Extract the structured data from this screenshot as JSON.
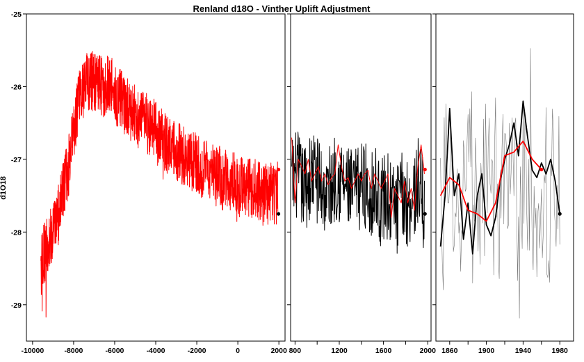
{
  "chart_data": {
    "type": "line",
    "title": "Renland d18O - Vinther Uplift Adjustment",
    "ylabel": "d1O18",
    "ylim": [
      -29.5,
      -25
    ],
    "y_ticks": [
      -29,
      -28,
      -27,
      -26,
      -25
    ],
    "y_tick_labels": [
      "-29",
      "-28",
      "-27",
      "-26",
      "-25"
    ],
    "grid": false,
    "legend": "none",
    "colors": {
      "red_series": "#ff0000",
      "black_series": "#000000",
      "annual_gray": "#7a7a7a",
      "frame": "#000000"
    },
    "panels": [
      {
        "xlim": [
          -10300,
          2300
        ],
        "x_ticks": [
          -10000,
          -8000,
          -6000,
          -4000,
          -2000,
          0,
          2000
        ],
        "x_tick_labels": [
          "-10000",
          "-8000",
          "-6000",
          "-4000",
          "-2000",
          "0",
          "2000"
        ],
        "series": [
          {
            "color": "#ff0000",
            "style": "noisy-line",
            "x": [
              -9600,
              -9450,
              -9300,
              -9150,
              -9000,
              -8850,
              -8700,
              -8550,
              -8400,
              -8250,
              -8100,
              -7950,
              -7800,
              -7650,
              -7500,
              -7350,
              -7200,
              -7050,
              -6900,
              -6750,
              -6600,
              -6450,
              -6300,
              -6150,
              -6000,
              -5850,
              -5700,
              -5550,
              -5400,
              -5250,
              -5100,
              -4950,
              -4800,
              -4650,
              -4500,
              -4350,
              -4200,
              -4050,
              -3900,
              -3750,
              -3600,
              -3450,
              -3300,
              -3150,
              -3000,
              -2850,
              -2700,
              -2550,
              -2400,
              -2250,
              -2100,
              -1950,
              -1800,
              -1650,
              -1500,
              -1350,
              -1200,
              -1050,
              -900,
              -750,
              -600,
              -450,
              -300,
              -150,
              0,
              150,
              300,
              450,
              600,
              750,
              900,
              1050,
              1200,
              1350,
              1500,
              1650,
              1800,
              1950
            ],
            "y": [
              -28.5,
              -28.3,
              -28.2,
              -28.1,
              -28.0,
              -27.9,
              -27.7,
              -27.5,
              -27.3,
              -27.1,
              -26.8,
              -26.6,
              -26.3,
              -26.1,
              -26.0,
              -25.9,
              -25.95,
              -25.9,
              -26.0,
              -25.95,
              -26.0,
              -26.0,
              -25.9,
              -25.95,
              -26.1,
              -26.2,
              -26.15,
              -26.3,
              -26.3,
              -26.35,
              -26.3,
              -26.4,
              -26.45,
              -26.5,
              -26.45,
              -26.55,
              -26.6,
              -26.55,
              -26.7,
              -26.7,
              -26.75,
              -26.8,
              -26.85,
              -26.8,
              -26.9,
              -26.9,
              -26.95,
              -27.0,
              -27.0,
              -27.05,
              -27.0,
              -27.1,
              -27.1,
              -27.15,
              -27.15,
              -27.2,
              -27.2,
              -27.25,
              -27.2,
              -27.3,
              -27.25,
              -27.3,
              -27.35,
              -27.3,
              -27.35,
              -27.4,
              -27.35,
              -27.4,
              -27.4,
              -27.45,
              -27.4,
              -27.45,
              -27.5,
              -27.45,
              -27.5,
              -27.45,
              -27.5,
              -27.45
            ]
          }
        ],
        "points": [
          {
            "x": 1980,
            "y": -27.14,
            "color": "#ff0000"
          },
          {
            "x": 1980,
            "y": -27.75,
            "color": "#000000"
          }
        ]
      },
      {
        "xlim": [
          760,
          2030
        ],
        "x_ticks": [
          800,
          1000,
          1200,
          1400,
          1600,
          1800,
          2000
        ],
        "x_tick_labels": [
          "800",
          "",
          "1200",
          "",
          "1600",
          "",
          "2000"
        ],
        "series": [
          {
            "color": "#000000",
            "style": "noisy-line",
            "x": [
              770,
              820,
              870,
              920,
              970,
              1020,
              1070,
              1120,
              1170,
              1220,
              1270,
              1320,
              1370,
              1420,
              1470,
              1520,
              1570,
              1620,
              1670,
              1720,
              1770,
              1820,
              1870,
              1920,
              1970
            ],
            "y": [
              -27.3,
              -27.2,
              -27.4,
              -27.3,
              -27.2,
              -27.3,
              -27.5,
              -27.4,
              -27.2,
              -27.3,
              -27.4,
              -27.5,
              -27.4,
              -27.3,
              -27.5,
              -27.4,
              -27.6,
              -27.5,
              -27.6,
              -27.7,
              -27.5,
              -27.6,
              -27.5,
              -27.3,
              -27.7
            ]
          },
          {
            "color": "#ff0000",
            "style": "smooth-line",
            "x": [
              770,
              800,
              830,
              860,
              890,
              920,
              950,
              980,
              1010,
              1040,
              1070,
              1100,
              1130,
              1160,
              1190,
              1220,
              1250,
              1280,
              1310,
              1340,
              1370,
              1400,
              1430,
              1460,
              1490,
              1520,
              1550,
              1580,
              1610,
              1640,
              1670,
              1700,
              1730,
              1760,
              1790,
              1820,
              1850,
              1880,
              1910,
              1940,
              1970
            ],
            "y": [
              -26.7,
              -27.6,
              -27.0,
              -27.1,
              -27.2,
              -27.0,
              -27.3,
              -27.2,
              -27.1,
              -27.3,
              -27.2,
              -27.35,
              -27.25,
              -27.2,
              -26.8,
              -27.1,
              -27.3,
              -27.25,
              -27.4,
              -27.3,
              -27.2,
              -27.3,
              -27.2,
              -27.15,
              -27.4,
              -27.2,
              -27.3,
              -27.4,
              -27.3,
              -27.2,
              -27.8,
              -27.4,
              -27.5,
              -27.6,
              -27.3,
              -27.6,
              -27.4,
              -27.7,
              -27.1,
              -26.8,
              -27.2
            ]
          }
        ],
        "points": [
          {
            "x": 1975,
            "y": -27.14,
            "color": "#ff0000"
          },
          {
            "x": 1975,
            "y": -27.75,
            "color": "#000000"
          }
        ]
      },
      {
        "xlim": [
          1845,
          1995
        ],
        "x_ticks": [
          1860,
          1880,
          1900,
          1920,
          1940,
          1960,
          1980
        ],
        "x_tick_labels": [
          "1860",
          "",
          "1900",
          "",
          "1940",
          "",
          "1980"
        ],
        "series": [
          {
            "color": "#7a7a7a",
            "style": "annual-line",
            "x": [
              1850,
              1980
            ],
            "y": [
              -27.5,
              -27.5
            ]
          },
          {
            "color": "#000000",
            "style": "line",
            "x": [
              1850,
              1855,
              1860,
              1865,
              1870,
              1875,
              1880,
              1885,
              1890,
              1895,
              1900,
              1905,
              1910,
              1915,
              1920,
              1925,
              1930,
              1935,
              1940,
              1945,
              1950,
              1955,
              1960,
              1965,
              1970,
              1975,
              1980
            ],
            "y": [
              -28.2,
              -27.5,
              -26.3,
              -27.5,
              -27.2,
              -28.1,
              -27.6,
              -28.3,
              -27.5,
              -27.2,
              -27.9,
              -28.05,
              -27.8,
              -27.3,
              -27.0,
              -26.8,
              -26.5,
              -26.95,
              -26.2,
              -26.7,
              -27.15,
              -27.25,
              -27.05,
              -27.2,
              -27.0,
              -27.3,
              -27.75
            ]
          },
          {
            "color": "#ff0000",
            "style": "line",
            "x": [
              1850,
              1860,
              1870,
              1880,
              1890,
              1900,
              1910,
              1920,
              1930,
              1940,
              1950,
              1960
            ],
            "y": [
              -27.5,
              -27.25,
              -27.35,
              -27.7,
              -27.75,
              -27.85,
              -27.6,
              -26.95,
              -26.9,
              -26.75,
              -27.0,
              -27.14
            ]
          }
        ],
        "points": [
          {
            "x": 1960,
            "y": -27.14,
            "color": "#ff0000"
          },
          {
            "x": 1980,
            "y": -27.75,
            "color": "#000000"
          }
        ]
      }
    ]
  }
}
